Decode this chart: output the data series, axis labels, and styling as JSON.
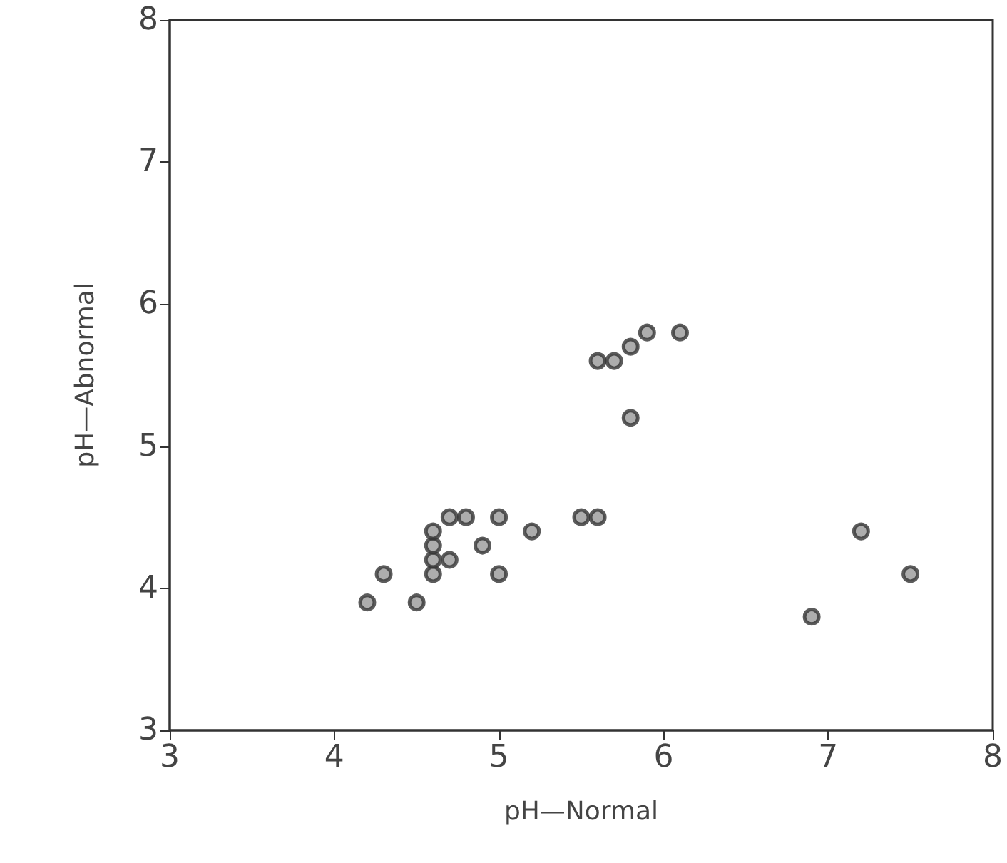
{
  "chart_data": {
    "type": "scatter",
    "xlabel": "pH—Normal",
    "ylabel": "pH—Abnormal",
    "x": [
      4.2,
      4.3,
      4.5,
      4.6,
      4.6,
      4.6,
      4.6,
      4.7,
      4.7,
      4.8,
      4.9,
      5.0,
      5.0,
      5.2,
      5.5,
      5.6,
      5.6,
      5.7,
      5.8,
      5.9,
      6.1,
      5.8,
      6.9,
      7.2,
      7.5
    ],
    "values": [
      3.9,
      4.1,
      3.9,
      4.1,
      4.2,
      4.3,
      4.4,
      4.5,
      4.2,
      4.5,
      4.3,
      4.5,
      4.1,
      4.4,
      4.5,
      4.5,
      5.6,
      5.6,
      5.7,
      5.8,
      5.8,
      5.2,
      3.8,
      4.4,
      4.1
    ],
    "color": "#333333",
    "marker": "circle",
    "grid": false,
    "xlim": [
      3,
      8
    ],
    "xticks": [
      3,
      4,
      5,
      6,
      7,
      8
    ],
    "ylim": [
      3,
      8
    ],
    "yticks": [
      3,
      4,
      5,
      6,
      7,
      8
    ]
  }
}
